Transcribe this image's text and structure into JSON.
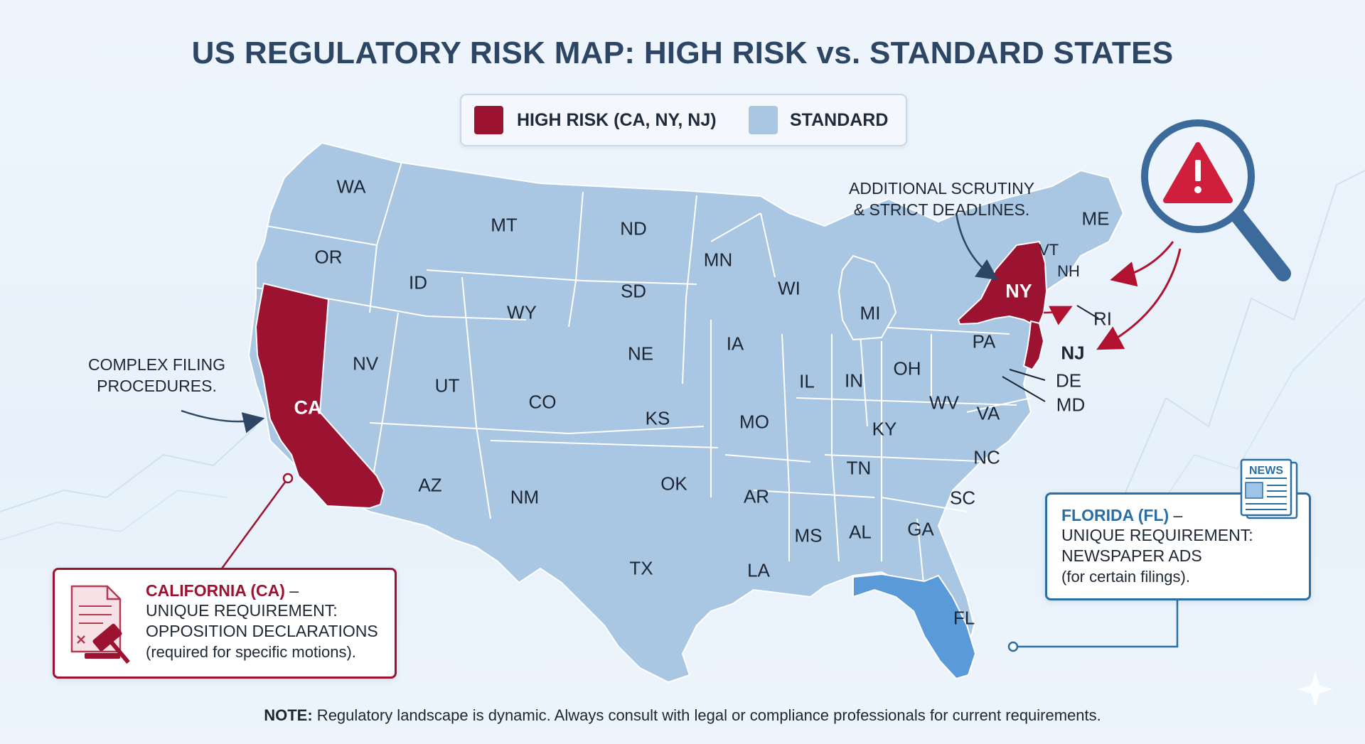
{
  "title": "US REGULATORY RISK MAP: HIGH RISK vs. STANDARD STATES",
  "legend": {
    "high_label": "HIGH RISK (CA, NY, NJ)",
    "standard_label": "STANDARD"
  },
  "colors": {
    "high_risk": "#9b1330",
    "standard": "#a9c6e2",
    "highlight_fl": "#5b9ad8",
    "title": "#2c4664",
    "fl_accent": "#2a6fa3"
  },
  "states": {
    "WA": "WA",
    "OR": "OR",
    "CA": "CA",
    "NV": "NV",
    "ID": "ID",
    "MT": "MT",
    "WY": "WY",
    "UT": "UT",
    "AZ": "AZ",
    "CO": "CO",
    "NM": "NM",
    "ND": "ND",
    "SD": "SD",
    "NE": "NE",
    "KS": "KS",
    "OK": "OK",
    "TX": "TX",
    "MN": "MN",
    "IA": "IA",
    "MO": "MO",
    "AR": "AR",
    "LA": "LA",
    "WI": "WI",
    "IL": "IL",
    "MI": "MI",
    "IN": "IN",
    "OH": "OH",
    "KY": "KY",
    "TN": "TN",
    "MS": "MS",
    "AL": "AL",
    "GA": "GA",
    "FL": "FL",
    "SC": "SC",
    "NC": "NC",
    "VA": "VA",
    "WV": "WV",
    "PA": "PA",
    "NY": "NY",
    "NJ": "NJ",
    "DE": "DE",
    "MD": "MD",
    "VT": "VT",
    "NH": "NH",
    "ME": "ME",
    "RI": "RI"
  },
  "annotations": {
    "ca_line1": "COMPLEX FILING",
    "ca_line2": "PROCEDURES.",
    "ny_line1": "ADDITIONAL SCRUTINY",
    "ny_line2": "& STRICT DEADLINES."
  },
  "ca_card": {
    "title": "CALIFORNIA (CA)",
    "dash": " –",
    "line2": "UNIQUE REQUIREMENT:",
    "line3": "OPPOSITION DECLARATIONS",
    "line4": "(required for specific motions)."
  },
  "fl_card": {
    "title": "FLORIDA (FL)",
    "dash": " –",
    "line2": "UNIQUE REQUIREMENT:",
    "line3": "NEWSPAPER ADS",
    "line4": "(for certain filings).",
    "icon_text": "NEWS"
  },
  "note": {
    "bold": "NOTE:",
    "text": " Regulatory landscape is dynamic. Always consult with legal or compliance professionals for current requirements."
  }
}
